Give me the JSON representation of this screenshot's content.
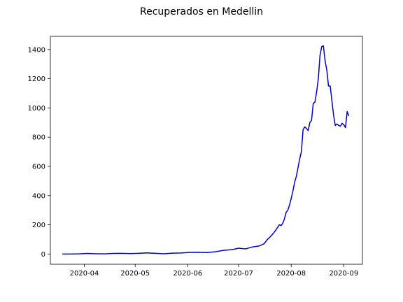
{
  "chart_data": {
    "type": "line",
    "title": "Recuperados en Medellin",
    "xlabel": "",
    "ylabel": "",
    "x_axis": {
      "type": "date",
      "range": [
        "2020-03-12",
        "2020-09-12"
      ],
      "ticks": [
        "2020-04-01",
        "2020-05-01",
        "2020-06-01",
        "2020-07-01",
        "2020-08-01",
        "2020-09-01"
      ],
      "tick_labels": [
        "2020-04",
        "2020-05",
        "2020-06",
        "2020-07",
        "2020-08",
        "2020-09"
      ]
    },
    "y_axis": {
      "range": [
        -70,
        1490
      ],
      "ticks": [
        0,
        200,
        400,
        600,
        800,
        1000,
        1200,
        1400
      ],
      "tick_labels": [
        "0",
        "200",
        "400",
        "600",
        "800",
        "1000",
        "1200",
        "1400"
      ]
    },
    "grid": false,
    "legend": "none",
    "series": [
      {
        "color": "#0000cc",
        "x": [
          "2020-03-19",
          "2020-03-24",
          "2020-03-29",
          "2020-04-03",
          "2020-04-08",
          "2020-04-13",
          "2020-04-18",
          "2020-04-23",
          "2020-04-28",
          "2020-05-03",
          "2020-05-08",
          "2020-05-13",
          "2020-05-18",
          "2020-05-23",
          "2020-05-28",
          "2020-06-02",
          "2020-06-07",
          "2020-06-12",
          "2020-06-17",
          "2020-06-22",
          "2020-06-27",
          "2020-07-01",
          "2020-07-05",
          "2020-07-09",
          "2020-07-13",
          "2020-07-16",
          "2020-07-18",
          "2020-07-19",
          "2020-07-21",
          "2020-07-23",
          "2020-07-25",
          "2020-07-26",
          "2020-07-27",
          "2020-07-28",
          "2020-07-29",
          "2020-07-30",
          "2020-07-31",
          "2020-08-01",
          "2020-08-02",
          "2020-08-03",
          "2020-08-04",
          "2020-08-05",
          "2020-08-06",
          "2020-08-07",
          "2020-08-08",
          "2020-08-09",
          "2020-08-10",
          "2020-08-11",
          "2020-08-12",
          "2020-08-13",
          "2020-08-14",
          "2020-08-15",
          "2020-08-16",
          "2020-08-17",
          "2020-08-18",
          "2020-08-19",
          "2020-08-20",
          "2020-08-21",
          "2020-08-22",
          "2020-08-23",
          "2020-08-24",
          "2020-08-25",
          "2020-08-26",
          "2020-08-27",
          "2020-08-28",
          "2020-08-29",
          "2020-08-30",
          "2020-08-31",
          "2020-09-01",
          "2020-09-02",
          "2020-09-03",
          "2020-09-04"
        ],
        "y": [
          0,
          0,
          1,
          4,
          2,
          1,
          4,
          5,
          3,
          5,
          8,
          5,
          2,
          6,
          7,
          11,
          12,
          10,
          15,
          25,
          30,
          40,
          35,
          48,
          55,
          70,
          100,
          110,
          135,
          165,
          200,
          195,
          210,
          240,
          285,
          300,
          335,
          380,
          430,
          490,
          530,
          590,
          650,
          700,
          850,
          870,
          860,
          845,
          900,
          915,
          1030,
          1040,
          1110,
          1200,
          1360,
          1420,
          1425,
          1320,
          1260,
          1150,
          1150,
          1050,
          950,
          880,
          890,
          880,
          875,
          895,
          885,
          865,
          975,
          945
        ]
      }
    ]
  }
}
